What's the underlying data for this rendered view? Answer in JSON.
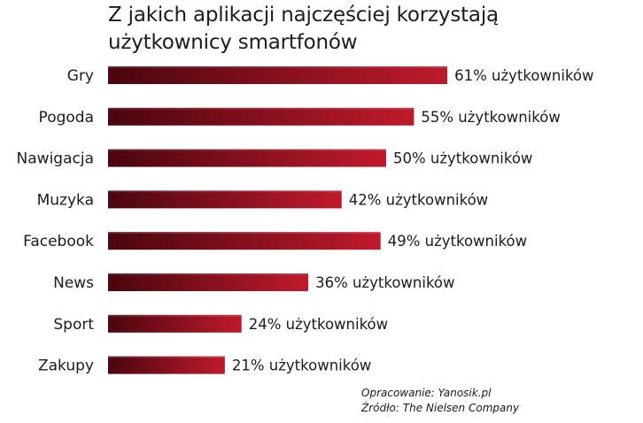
{
  "chart_data": {
    "type": "bar",
    "orientation": "horizontal",
    "title": "Z jakich aplikacji najczęściej korzystają użytkownicy smartfonów",
    "categories": [
      "Gry",
      "Pogoda",
      "Nawigacja",
      "Muzyka",
      "Facebook",
      "News",
      "Sport",
      "Zakupy"
    ],
    "values": [
      61,
      55,
      50,
      42,
      49,
      36,
      24,
      21
    ],
    "data_labels": [
      "61% użytkowników",
      "55% użytkowników",
      "50% użytkowników",
      "42% użytkowników",
      "49% użytkowników",
      "36% użytkowników",
      "24% użytkowników",
      "21% użytkowników"
    ],
    "xlabel": "",
    "ylabel": "",
    "xlim": [
      0,
      61
    ],
    "grid": false,
    "legend": "none",
    "bar_gradient": [
      "#4a060e",
      "#c01a2c"
    ]
  },
  "credits": {
    "line1": "Opracowanie: Yanosik.pl",
    "line2": "Źródło: The Nielsen Company"
  }
}
